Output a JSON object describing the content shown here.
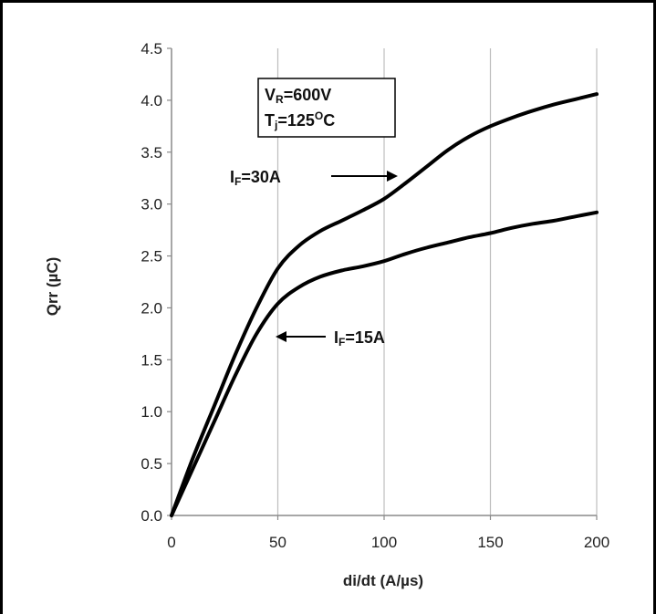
{
  "chart_data": {
    "type": "line",
    "title": "",
    "xlabel": "di/dt (A/µs)",
    "ylabel": "Qrr (µC)",
    "xlim": [
      0,
      200
    ],
    "ylim": [
      0,
      4.5
    ],
    "x_ticks": [
      "0",
      "50",
      "100",
      "150",
      "200"
    ],
    "y_ticks": [
      "0.0",
      "0.5",
      "1.0",
      "1.5",
      "2.0",
      "2.5",
      "3.0",
      "3.5",
      "4.0",
      "4.5"
    ],
    "grid": "vertical",
    "conditions": {
      "line1": {
        "main": "V",
        "sub": "R",
        "rest": "=600V"
      },
      "line2": {
        "main": "T",
        "sub": "j",
        "mid": "=125",
        "sup": "O",
        "rest": "C"
      }
    },
    "series": [
      {
        "label": {
          "main": "I",
          "sub": "F",
          "rest": "=30A"
        },
        "x": [
          0,
          10,
          20,
          30,
          40,
          50,
          60,
          70,
          80,
          90,
          100,
          110,
          120,
          130,
          140,
          150,
          160,
          170,
          180,
          190,
          200
        ],
        "y": [
          0,
          0.55,
          1.05,
          1.55,
          2.0,
          2.38,
          2.6,
          2.74,
          2.84,
          2.94,
          3.05,
          3.2,
          3.36,
          3.52,
          3.65,
          3.75,
          3.83,
          3.9,
          3.96,
          4.01,
          4.06
        ]
      },
      {
        "label": {
          "main": "I",
          "sub": "F",
          "rest": "=15A"
        },
        "x": [
          0,
          10,
          20,
          30,
          40,
          50,
          60,
          70,
          80,
          90,
          100,
          110,
          120,
          130,
          140,
          150,
          160,
          170,
          180,
          190,
          200
        ],
        "y": [
          0,
          0.45,
          0.9,
          1.35,
          1.75,
          2.04,
          2.2,
          2.3,
          2.36,
          2.4,
          2.45,
          2.52,
          2.58,
          2.63,
          2.68,
          2.72,
          2.77,
          2.81,
          2.84,
          2.88,
          2.92
        ]
      }
    ]
  }
}
